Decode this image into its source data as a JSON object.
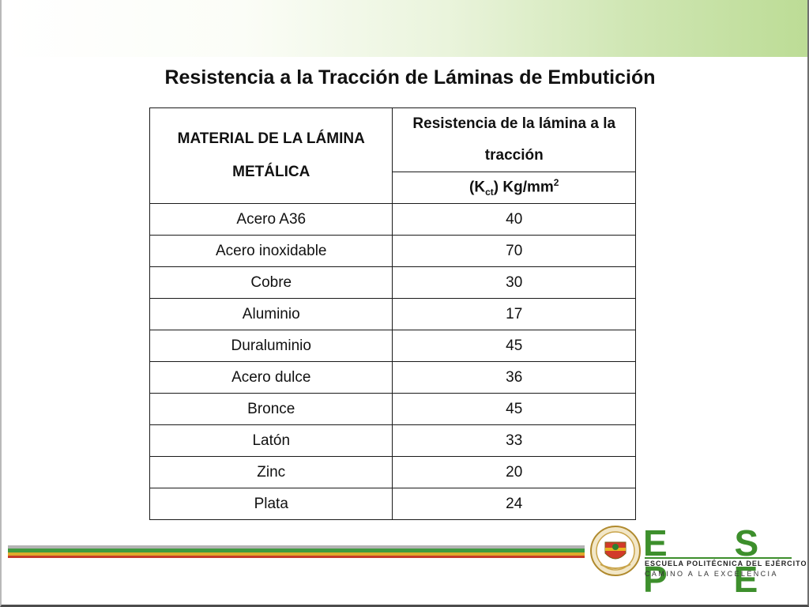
{
  "slide": {
    "title": "Resistencia a la Tracción de Láminas de Embutición"
  },
  "table": {
    "header_material": "MATERIAL DE LA LÁMINA METÁLICA",
    "header_resistance": "Resistencia de la lámina a la tracción",
    "header_unit_open": "(K",
    "header_unit_sub": "ct",
    "header_unit_close": ") Kg/mm",
    "header_unit_sup": "2",
    "rows": [
      {
        "material": "Acero A36",
        "value": "40"
      },
      {
        "material": "Acero inoxidable",
        "value": "70"
      },
      {
        "material": "Cobre",
        "value": "30"
      },
      {
        "material": "Aluminio",
        "value": "17"
      },
      {
        "material": "Duraluminio",
        "value": "45"
      },
      {
        "material": "Acero dulce",
        "value": "36"
      },
      {
        "material": "Bronce",
        "value": "45"
      },
      {
        "material": "Latón",
        "value": "33"
      },
      {
        "material": "Zinc",
        "value": "20"
      },
      {
        "material": "Plata",
        "value": "24"
      }
    ]
  },
  "logo": {
    "name": "E S P E",
    "subtitle": "ESCUELA POLITÉCNICA DEL EJÉRCITO",
    "tagline": "CAMINO A LA EXCELENCIA",
    "seal_icon": "espe-seal-icon",
    "brand_color": "#3d8f2c"
  },
  "colors": {
    "stripe_gray": "#b3b3b3",
    "stripe_green": "#3f9a3f",
    "stripe_yellow": "#e0a92b",
    "stripe_red": "#c63a2a"
  }
}
